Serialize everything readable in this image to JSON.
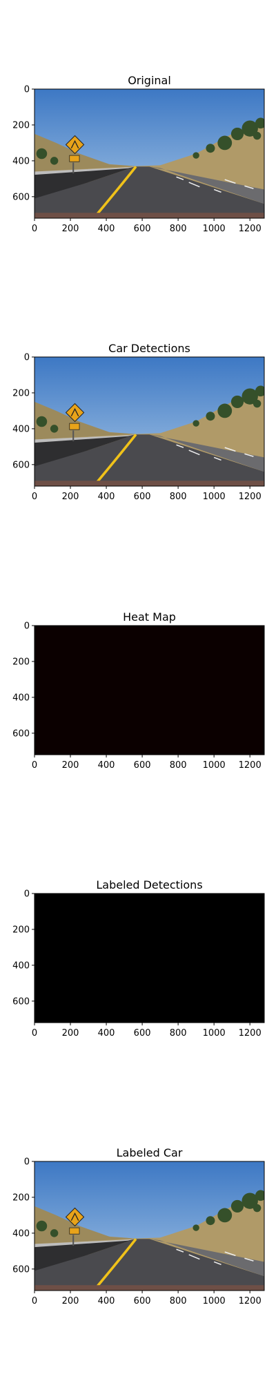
{
  "figure": {
    "image_width": 1280,
    "image_height": 720,
    "xticks": [
      0,
      200,
      400,
      600,
      800,
      1000,
      1200
    ],
    "yticks": [
      0,
      200,
      400,
      600
    ]
  },
  "chart_data": [
    {
      "type": "image",
      "title": "Original",
      "content": "road-scene",
      "xlim": [
        0,
        1280
      ],
      "ylim": [
        720,
        0
      ]
    },
    {
      "type": "image",
      "title": "Car Detections",
      "content": "road-scene",
      "xlim": [
        0,
        1280
      ],
      "ylim": [
        720,
        0
      ]
    },
    {
      "type": "heatmap",
      "title": "Heat Map",
      "content": "uniform-dark",
      "fill": "#0b0000",
      "xlim": [
        0,
        1280
      ],
      "ylim": [
        720,
        0
      ]
    },
    {
      "type": "image",
      "title": "Labeled Detections",
      "content": "uniform-black",
      "fill": "#000000",
      "xlim": [
        0,
        1280
      ],
      "ylim": [
        720,
        0
      ]
    },
    {
      "type": "image",
      "title": "Labeled Car",
      "content": "road-scene",
      "xlim": [
        0,
        1280
      ],
      "ylim": [
        720,
        0
      ]
    }
  ],
  "colors": {
    "sky_top": "#3d78c4",
    "sky_bottom": "#a8c7e6",
    "hill": "#b09a68",
    "road": "#4a4a4e",
    "lane_yellow": "#f0c21a",
    "lane_white": "#eeeeee",
    "barrier": "#2e2e30",
    "sign": "#e8a31a",
    "tree": "#35502a"
  }
}
